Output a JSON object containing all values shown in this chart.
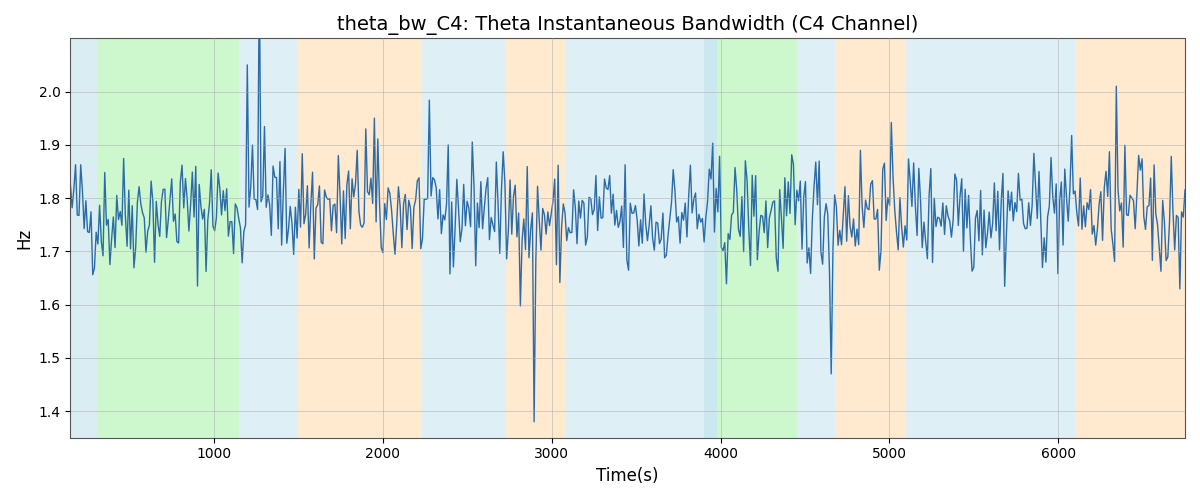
{
  "title": "theta_bw_C4: Theta Instantaneous Bandwidth (C4 Channel)",
  "xlabel": "Time(s)",
  "ylabel": "Hz",
  "xlim": [
    150,
    6750
  ],
  "ylim": [
    1.35,
    2.1
  ],
  "yticks": [
    1.4,
    1.5,
    1.6,
    1.7,
    1.8,
    1.9,
    2.0
  ],
  "xticks": [
    1000,
    2000,
    3000,
    4000,
    5000,
    6000
  ],
  "line_color": "#2b6ca8",
  "line_width": 1.0,
  "background_color": "#ffffff",
  "title_fontsize": 14,
  "label_fontsize": 12,
  "grid_color": "#aaaaaa",
  "seed": 42,
  "n_points": 650,
  "x_start": 150,
  "x_end": 6750,
  "signal_mean": 1.76,
  "signal_std": 0.055,
  "bands": [
    {
      "start": 150,
      "end": 310,
      "color": "#add8e6",
      "alpha": 0.45
    },
    {
      "start": 310,
      "end": 1150,
      "color": "#90ee90",
      "alpha": 0.45
    },
    {
      "start": 1150,
      "end": 1500,
      "color": "#add8e6",
      "alpha": 0.4
    },
    {
      "start": 1500,
      "end": 2230,
      "color": "#ffd8a8",
      "alpha": 0.55
    },
    {
      "start": 2230,
      "end": 2730,
      "color": "#add8e6",
      "alpha": 0.4
    },
    {
      "start": 2730,
      "end": 3080,
      "color": "#ffd8a8",
      "alpha": 0.55
    },
    {
      "start": 3080,
      "end": 3900,
      "color": "#add8e6",
      "alpha": 0.4
    },
    {
      "start": 3900,
      "end": 3980,
      "color": "#add8e6",
      "alpha": 0.6
    },
    {
      "start": 3980,
      "end": 4450,
      "color": "#90ee90",
      "alpha": 0.45
    },
    {
      "start": 4450,
      "end": 4680,
      "color": "#add8e6",
      "alpha": 0.4
    },
    {
      "start": 4680,
      "end": 5100,
      "color": "#ffd8a8",
      "alpha": 0.55
    },
    {
      "start": 5100,
      "end": 5900,
      "color": "#add8e6",
      "alpha": 0.4
    },
    {
      "start": 5900,
      "end": 6100,
      "color": "#add8e6",
      "alpha": 0.4
    },
    {
      "start": 6100,
      "end": 6750,
      "color": "#ffd8a8",
      "alpha": 0.55
    }
  ]
}
